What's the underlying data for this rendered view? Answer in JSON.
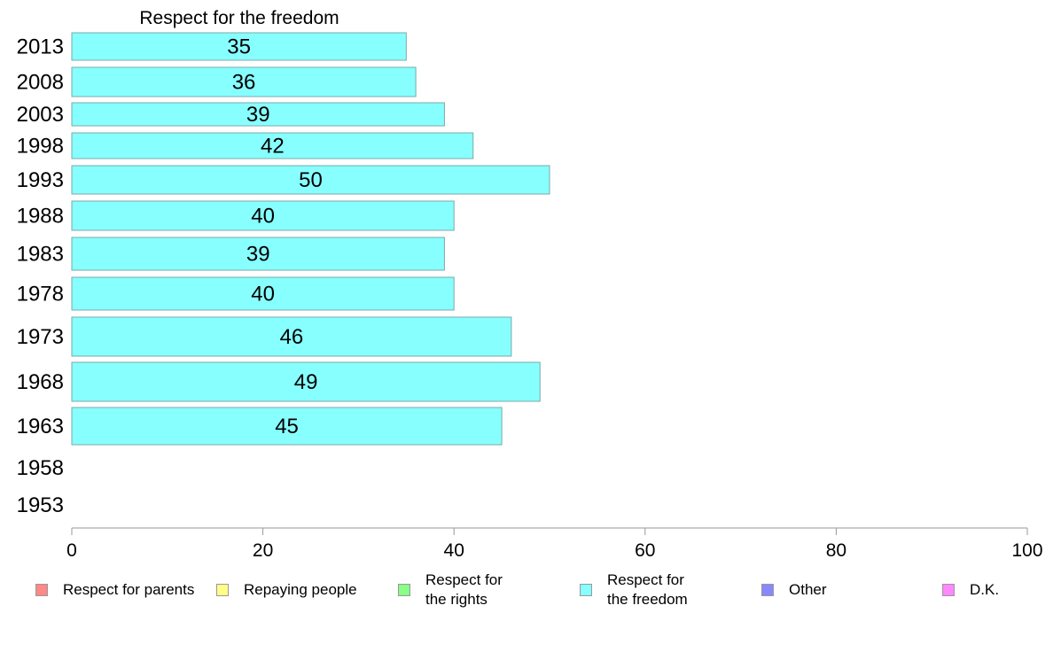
{
  "chart_data": {
    "type": "bar",
    "orientation": "horizontal",
    "title": "Respect for the freedom",
    "categories": [
      "2013",
      "2008",
      "2003",
      "1998",
      "1993",
      "1988",
      "1983",
      "1978",
      "1973",
      "1968",
      "1963",
      "1958",
      "1953"
    ],
    "series": [
      {
        "name": "Respect for the freedom",
        "values": [
          35,
          36,
          39,
          42,
          50,
          40,
          39,
          40,
          46,
          49,
          45,
          null,
          null
        ],
        "data_labels": [
          "35",
          "36",
          "39",
          "42",
          "50",
          "40",
          "39",
          "40",
          "46",
          "49",
          "45",
          "",
          ""
        ]
      }
    ],
    "xlim": [
      0,
      100
    ],
    "xticks": [
      "0",
      "20",
      "40",
      "60",
      "80",
      "100"
    ],
    "grid": false,
    "legend_position": "bottom",
    "legend": [
      {
        "label": "Respect for parents",
        "color": "#ff8888"
      },
      {
        "label": "Repaying people",
        "color": "#ffff88"
      },
      {
        "label": "Respect for\nthe rights",
        "color": "#88ff88"
      },
      {
        "label": "Respect for\nthe freedom",
        "color": "#88ffff"
      },
      {
        "label": "Other",
        "color": "#8888ff"
      },
      {
        "label": "D.K.",
        "color": "#ff88ff"
      }
    ],
    "bar_color": "#88ffff"
  }
}
